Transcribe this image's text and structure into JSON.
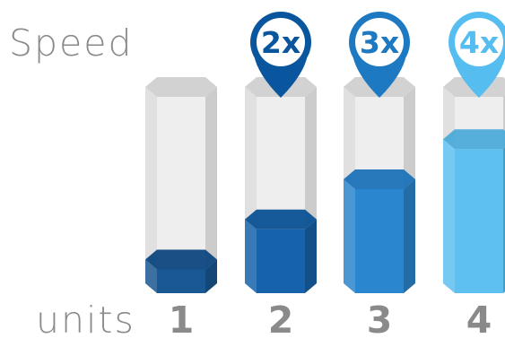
{
  "chart_data": {
    "type": "bar",
    "style": "3d-hexagonal-cylinders",
    "ylabel": "Speed",
    "xlabel": "units",
    "categories": [
      "1",
      "2",
      "3",
      "4"
    ],
    "values": [
      1,
      2,
      3,
      4
    ],
    "ylim": [
      0,
      5.6
    ],
    "data_labels": [
      "",
      "2x",
      "3x",
      "4x"
    ],
    "colors": [
      "#0d4f8c",
      "#0a5aa6",
      "#1f7fcb",
      "#55bdf0"
    ],
    "empty_tube_color": "#e2e2e2",
    "grid": false,
    "legend": "none"
  }
}
